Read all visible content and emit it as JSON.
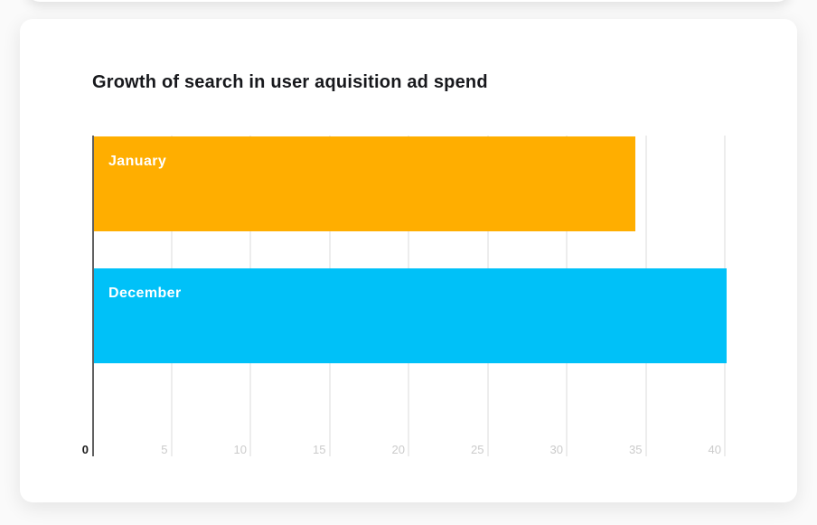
{
  "page": {
    "background_color": "#fafafa",
    "card_color": "#ffffff"
  },
  "chart_data": {
    "type": "bar",
    "orientation": "horizontal",
    "title": "Growth of search in user aquisition ad spend",
    "categories": [
      "January",
      "December"
    ],
    "values": [
      34.2,
      40
    ],
    "series_colors": [
      "#FFAE00",
      "#00C1F8"
    ],
    "bar_label_color": "#ffffff",
    "xlabel": "",
    "ylabel": "",
    "xlim": [
      0,
      40
    ],
    "xticks": [
      0,
      5,
      10,
      15,
      20,
      25,
      30,
      35,
      40
    ],
    "grid": true,
    "gridline_color": "#ededed",
    "axis_line_color": "#606060",
    "tick_label_color": "#cbcbcb",
    "zero_tick_label_color": "#1a1a1a",
    "legend_position": "none"
  }
}
